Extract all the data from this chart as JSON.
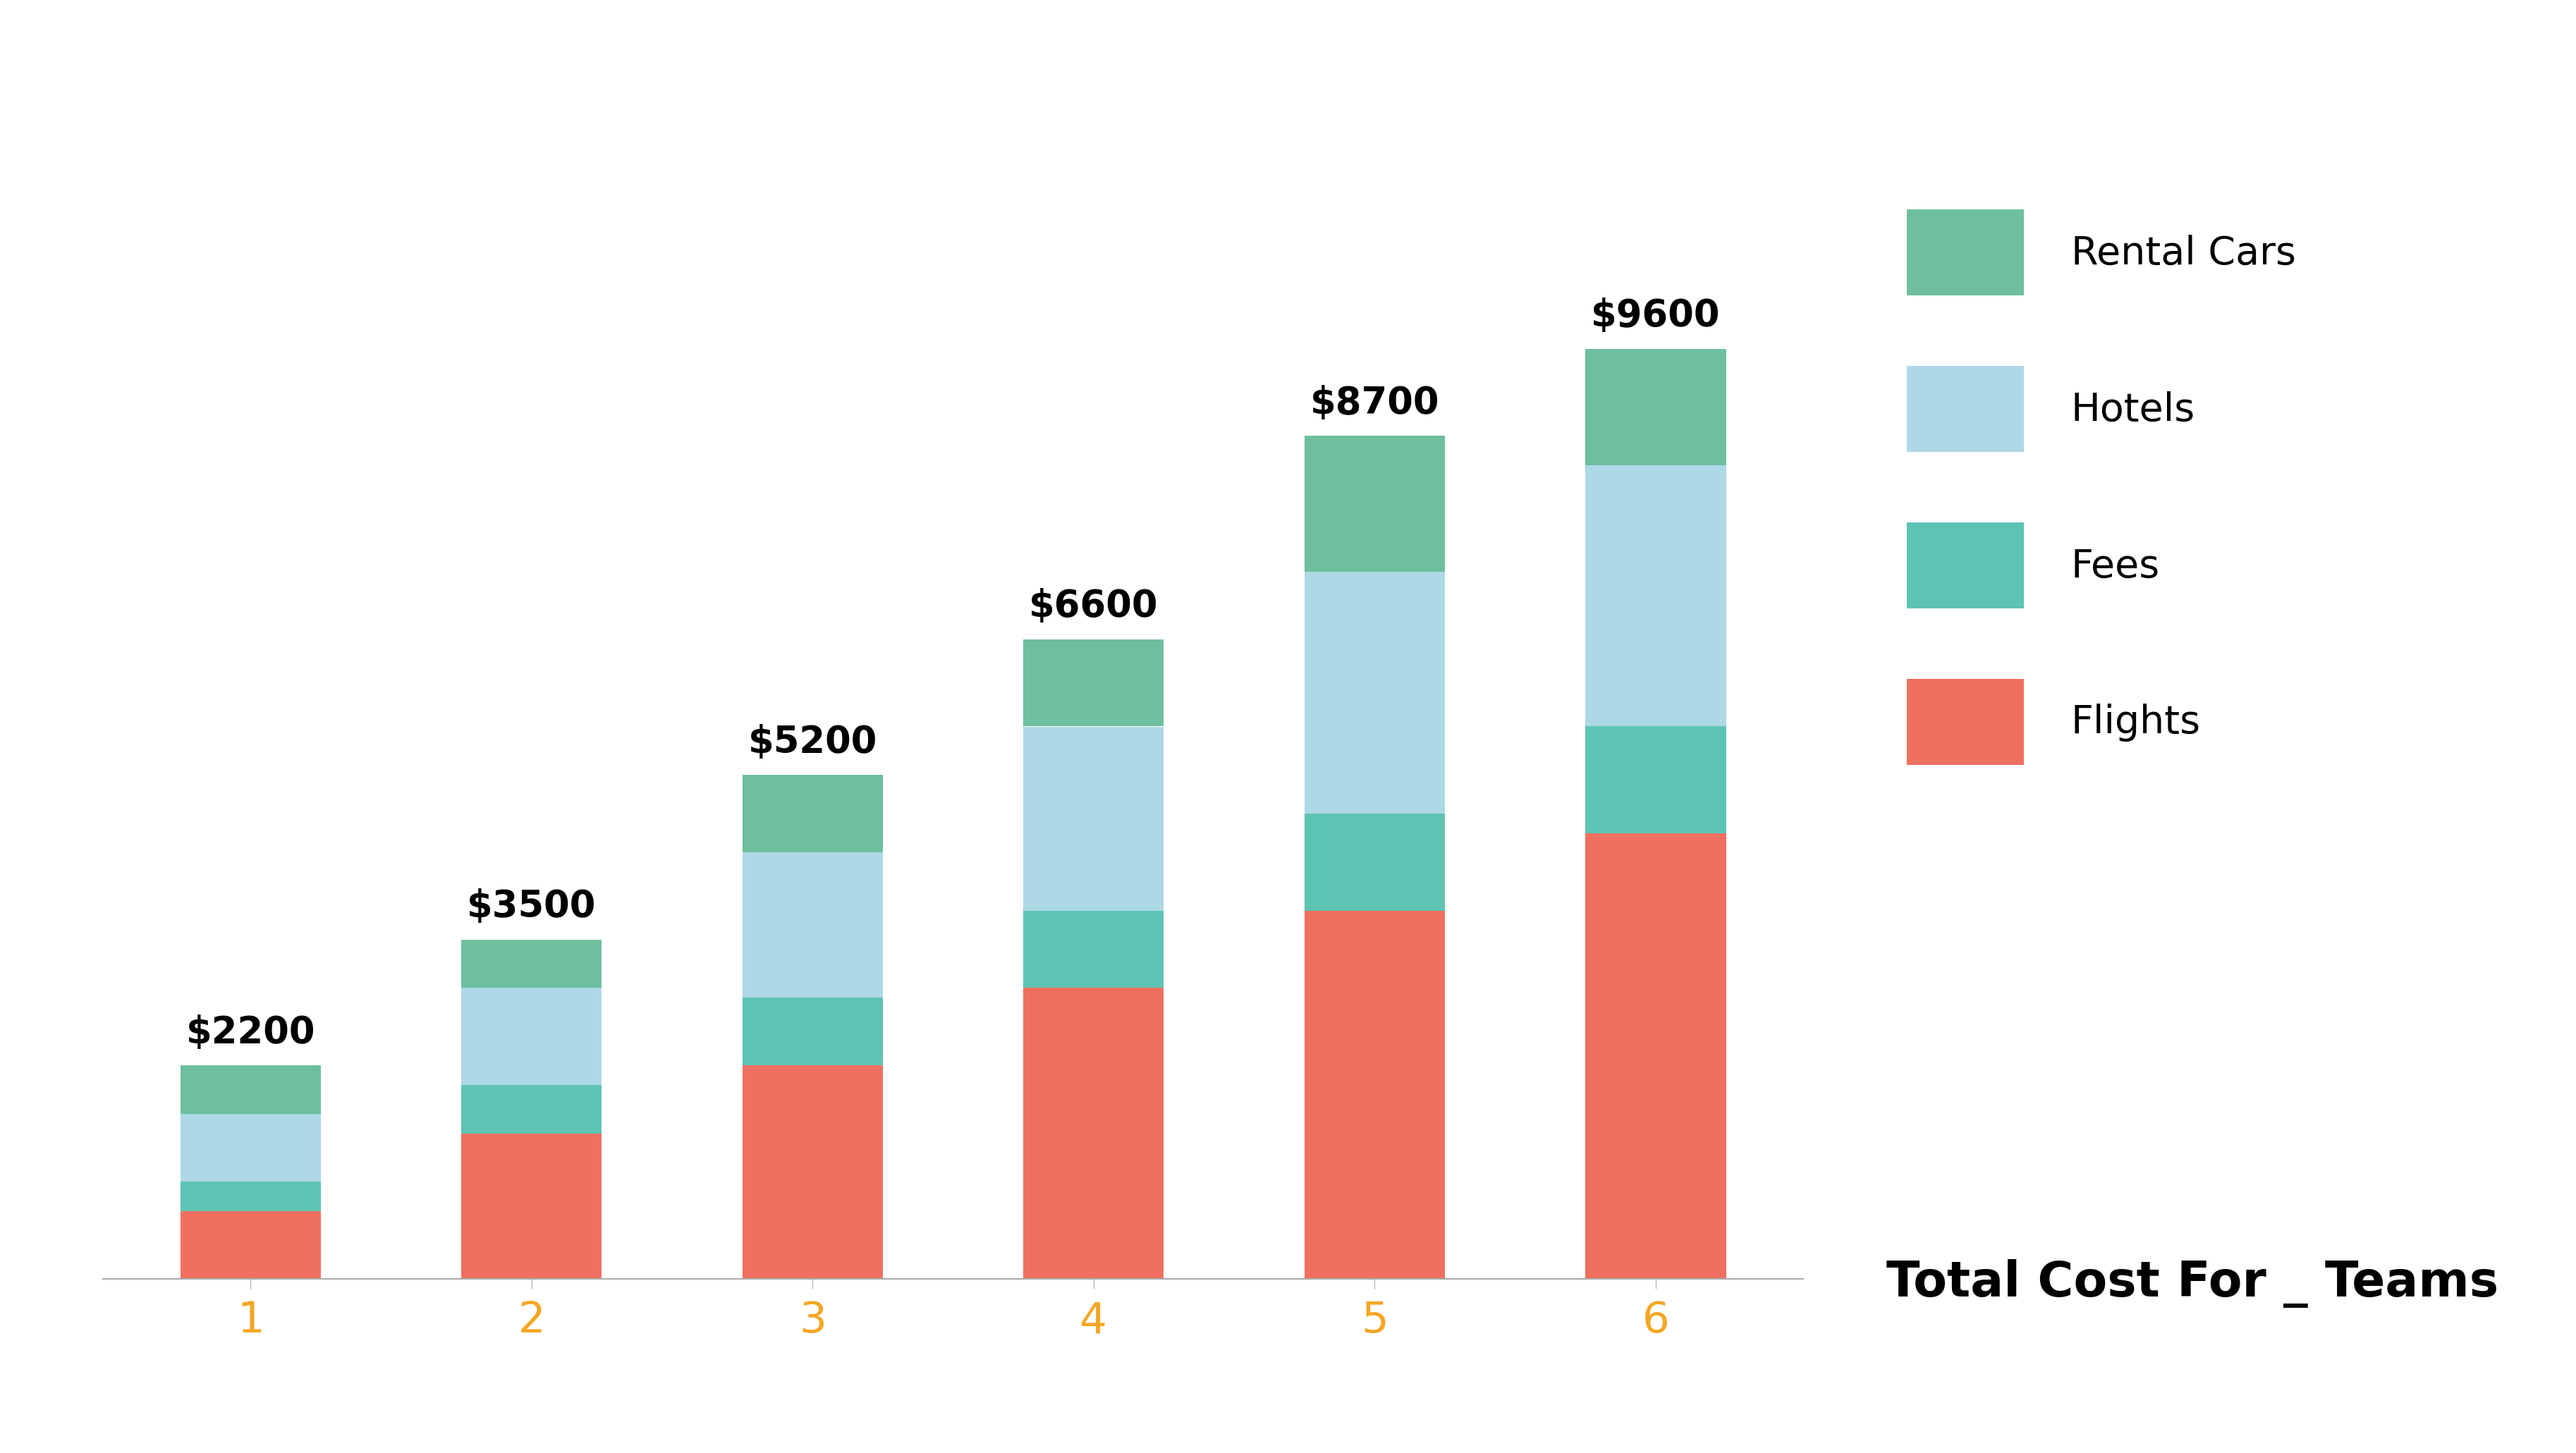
{
  "categories": [
    1,
    2,
    3,
    4,
    5,
    6
  ],
  "totals": [
    2200,
    3500,
    5200,
    6600,
    8700,
    9600
  ],
  "flights": [
    700,
    1500,
    2200,
    3000,
    3800,
    4600
  ],
  "fees": [
    300,
    500,
    700,
    800,
    1000,
    1100
  ],
  "hotels": [
    700,
    1000,
    1500,
    1900,
    2500,
    2700
  ],
  "rental_cars": [
    500,
    500,
    800,
    900,
    1400,
    1200
  ],
  "color_flights": "#F07060",
  "color_fees": "#5DC4B4",
  "color_hotels": "#ADD8E6",
  "color_rental_cars": "#6DBF9E",
  "color_xtick": "#F5A623",
  "bar_width": 0.5,
  "xlabel_title": "Total Cost For _ Teams",
  "total_labels": [
    "$2200",
    "$3500",
    "$5200",
    "$6600",
    "$8700",
    "$9600"
  ],
  "ylim": [
    0,
    12000
  ],
  "background_color": "#ffffff",
  "label_fontsize": 38,
  "tick_fontsize": 44,
  "legend_fontsize": 40,
  "title_fontsize": 50
}
